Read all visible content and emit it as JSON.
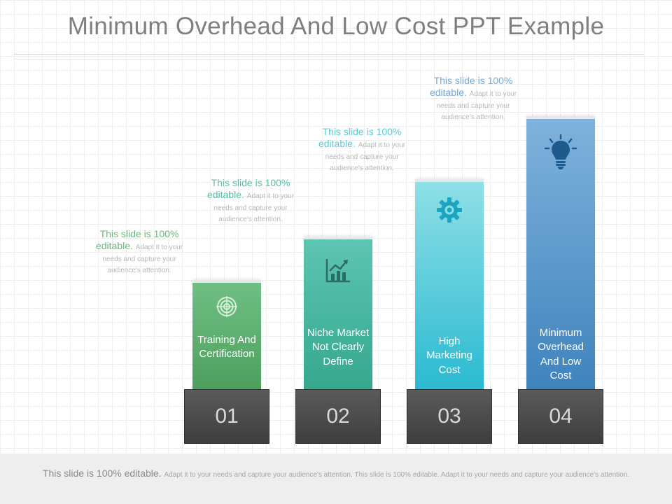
{
  "title": "Minimum Overhead And Low Cost PPT Example",
  "steps": [
    {
      "number": "01",
      "label": "Training And Certification",
      "icon": "target-icon",
      "note_head": "This slide is 100% editable.",
      "note_body": "Adapt it to your needs and capture your audience's attention.",
      "color": "#5aa86c"
    },
    {
      "number": "02",
      "label": "Niche Market Not Clearly Define",
      "icon": "growth-chart-icon",
      "note_head": "This slide is 100% editable.",
      "note_body": "Adapt it to your needs and capture your audience's attention.",
      "color": "#41b49c"
    },
    {
      "number": "03",
      "label": "High Marketing Cost",
      "icon": "gear-icon",
      "note_head": "This slide is 100% editable.",
      "note_body": "Adapt it to your needs and capture your audience's attention.",
      "color": "#5ccfdb"
    },
    {
      "number": "04",
      "label": "Minimum Overhead And Low Cost",
      "icon": "lightbulb-icon",
      "note_head": "This slide is 100% editable.",
      "note_body": "Adapt it to your needs and capture your audience's attention.",
      "color": "#6ba3d2"
    }
  ],
  "footer": {
    "head": "This slide is 100% editable.",
    "body": "Adapt it to your needs and capture your audience's attention. This slide is 100% editable. Adapt it to your needs and capture your audience's attention."
  }
}
